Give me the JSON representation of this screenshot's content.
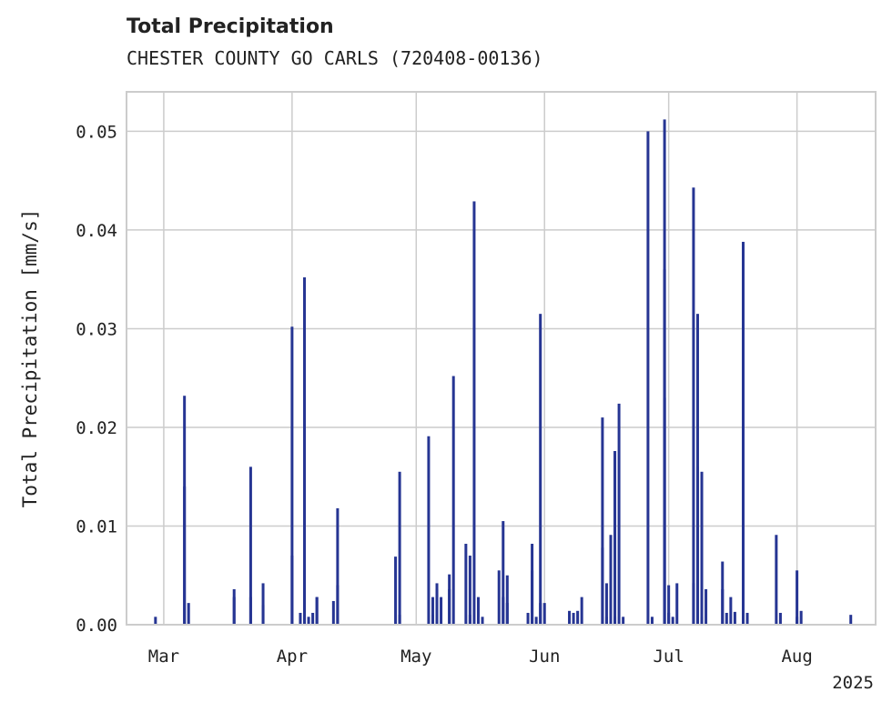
{
  "header": {
    "title": "Total Precipitation",
    "subtitle": "CHESTER COUNTY GO CARLS (720408-00136)"
  },
  "chart_data": {
    "type": "bar",
    "title": "Total Precipitation",
    "subtitle": "CHESTER COUNTY GO CARLS (720408-00136)",
    "xlabel": "",
    "ylabel": "Total Precipitation [mm/s]",
    "xlim": [
      "2025-02-20",
      "2025-08-20"
    ],
    "ylim": [
      0,
      0.054
    ],
    "yticks": [
      0.0,
      0.01,
      0.02,
      0.03,
      0.04,
      0.05
    ],
    "ytick_labels": [
      "0.00",
      "0.01",
      "0.02",
      "0.03",
      "0.04",
      "0.05"
    ],
    "xticks": [
      "2025-03-01",
      "2025-04-01",
      "2025-05-01",
      "2025-06-01",
      "2025-07-01",
      "2025-08-01"
    ],
    "xtick_labels": [
      "Mar",
      "Apr",
      "May",
      "Jun",
      "Jul",
      "Aug"
    ],
    "year_label": "2025",
    "grid": true,
    "bar_color": "#263593",
    "series": [
      {
        "x": [
          "2025-02-27",
          "2025-03-06",
          "2025-03-06",
          "2025-03-07",
          "2025-03-18",
          "2025-03-18",
          "2025-03-22",
          "2025-03-22",
          "2025-03-25",
          "2025-03-25",
          "2025-04-01",
          "2025-04-01",
          "2025-04-03",
          "2025-04-04",
          "2025-04-04",
          "2025-04-05",
          "2025-04-06",
          "2025-04-07",
          "2025-04-07",
          "2025-04-11",
          "2025-04-12",
          "2025-04-12",
          "2025-04-26",
          "2025-04-27",
          "2025-04-27",
          "2025-05-04",
          "2025-05-05",
          "2025-05-05",
          "2025-05-06",
          "2025-05-06",
          "2025-05-07",
          "2025-05-09",
          "2025-05-09",
          "2025-05-10",
          "2025-05-13",
          "2025-05-14",
          "2025-05-14",
          "2025-05-15",
          "2025-05-16",
          "2025-05-17",
          "2025-05-21",
          "2025-05-22",
          "2025-05-22",
          "2025-05-23",
          "2025-05-23",
          "2025-05-28",
          "2025-05-29",
          "2025-05-29",
          "2025-05-30",
          "2025-05-31",
          "2025-05-31",
          "2025-06-01",
          "2025-06-07",
          "2025-06-08",
          "2025-06-09",
          "2025-06-10",
          "2025-06-15",
          "2025-06-15",
          "2025-06-16",
          "2025-06-16",
          "2025-06-17",
          "2025-06-17",
          "2025-06-18",
          "2025-06-18",
          "2025-06-19",
          "2025-06-20",
          "2025-06-26",
          "2025-06-27",
          "2025-06-30",
          "2025-06-30",
          "2025-06-30",
          "2025-07-01",
          "2025-07-01",
          "2025-07-02",
          "2025-07-03",
          "2025-07-07",
          "2025-07-07",
          "2025-07-08",
          "2025-07-08",
          "2025-07-09",
          "2025-07-09",
          "2025-07-10",
          "2025-07-14",
          "2025-07-14",
          "2025-07-15",
          "2025-07-16",
          "2025-07-17",
          "2025-07-19",
          "2025-07-20",
          "2025-07-27",
          "2025-07-28",
          "2025-08-01",
          "2025-08-01",
          "2025-08-02",
          "2025-08-14",
          "2025-08-15"
        ],
        "values": [
          0.0008,
          0.0232,
          0.014,
          0.0022,
          0.0036,
          0.0028,
          0.016,
          0.0028,
          0.002,
          0.0042,
          0.0302,
          0.007,
          0.0012,
          0.0352,
          0.0055,
          0.0008,
          0.0012,
          0.0028,
          0.0028,
          0.0024,
          0.0118,
          0.004,
          0.0069,
          0.0155,
          0.001,
          0.0191,
          0.0028,
          0.001,
          0.0042,
          0.0036,
          0.0028,
          0.0036,
          0.0051,
          0.0252,
          0.0082,
          0.007,
          0.001,
          0.0429,
          0.0028,
          0.0008,
          0.0055,
          0.0105,
          0.0028,
          0.005,
          0.0022,
          0.0012,
          0.0082,
          0.0055,
          0.0008,
          0.0315,
          0.0022,
          0.0022,
          0.0014,
          0.0012,
          0.0014,
          0.0028,
          0.021,
          0.0078,
          0.0008,
          0.0042,
          0.0091,
          0.0008,
          0.0176,
          0.0008,
          0.0224,
          0.0008,
          0.05,
          0.0008,
          0.023,
          0.0512,
          0.036,
          0.004,
          0.0012,
          0.0008,
          0.0042,
          0.0443,
          0.0042,
          0.0315,
          0.016,
          0.0008,
          0.0155,
          0.0036,
          0.0036,
          0.0064,
          0.0012,
          0.0028,
          0.0013,
          0.0388,
          0.0012,
          0.0091,
          0.0012,
          0.0055,
          0.0008,
          0.0014,
          0.001,
          0.0
        ]
      }
    ]
  }
}
